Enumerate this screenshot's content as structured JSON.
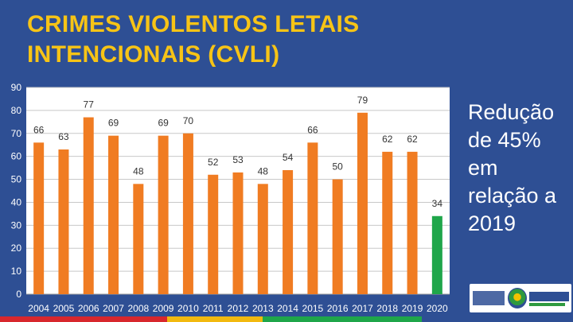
{
  "title_line1": "CRIMES VIOLENTOS LETAIS",
  "title_line2": "INTENCIONAIS (CVLI)",
  "note_lines": [
    "Redução",
    "de 45%",
    "em",
    "relação a",
    "2019"
  ],
  "colors": {
    "background": "#2e4f94",
    "title": "#f7c416",
    "bar": "#f07c22",
    "highlight": "#1fa64a"
  },
  "chart_data": {
    "type": "bar",
    "title": "CRIMES VIOLENTOS LETAIS INTENCIONAIS (CVLI)",
    "categories": [
      "2004",
      "2005",
      "2006",
      "2007",
      "2008",
      "2009",
      "2010",
      "2011",
      "2012",
      "2013",
      "2014",
      "2015",
      "2016",
      "2017",
      "2018",
      "2019",
      "2020"
    ],
    "values": [
      66,
      63,
      77,
      69,
      48,
      69,
      70,
      52,
      53,
      48,
      54,
      66,
      50,
      79,
      62,
      62,
      34
    ],
    "highlight_category": "2020",
    "ylim": [
      0,
      90
    ],
    "yticks": [
      0,
      10,
      20,
      30,
      40,
      50,
      60,
      70,
      80,
      90
    ],
    "grid": true
  }
}
